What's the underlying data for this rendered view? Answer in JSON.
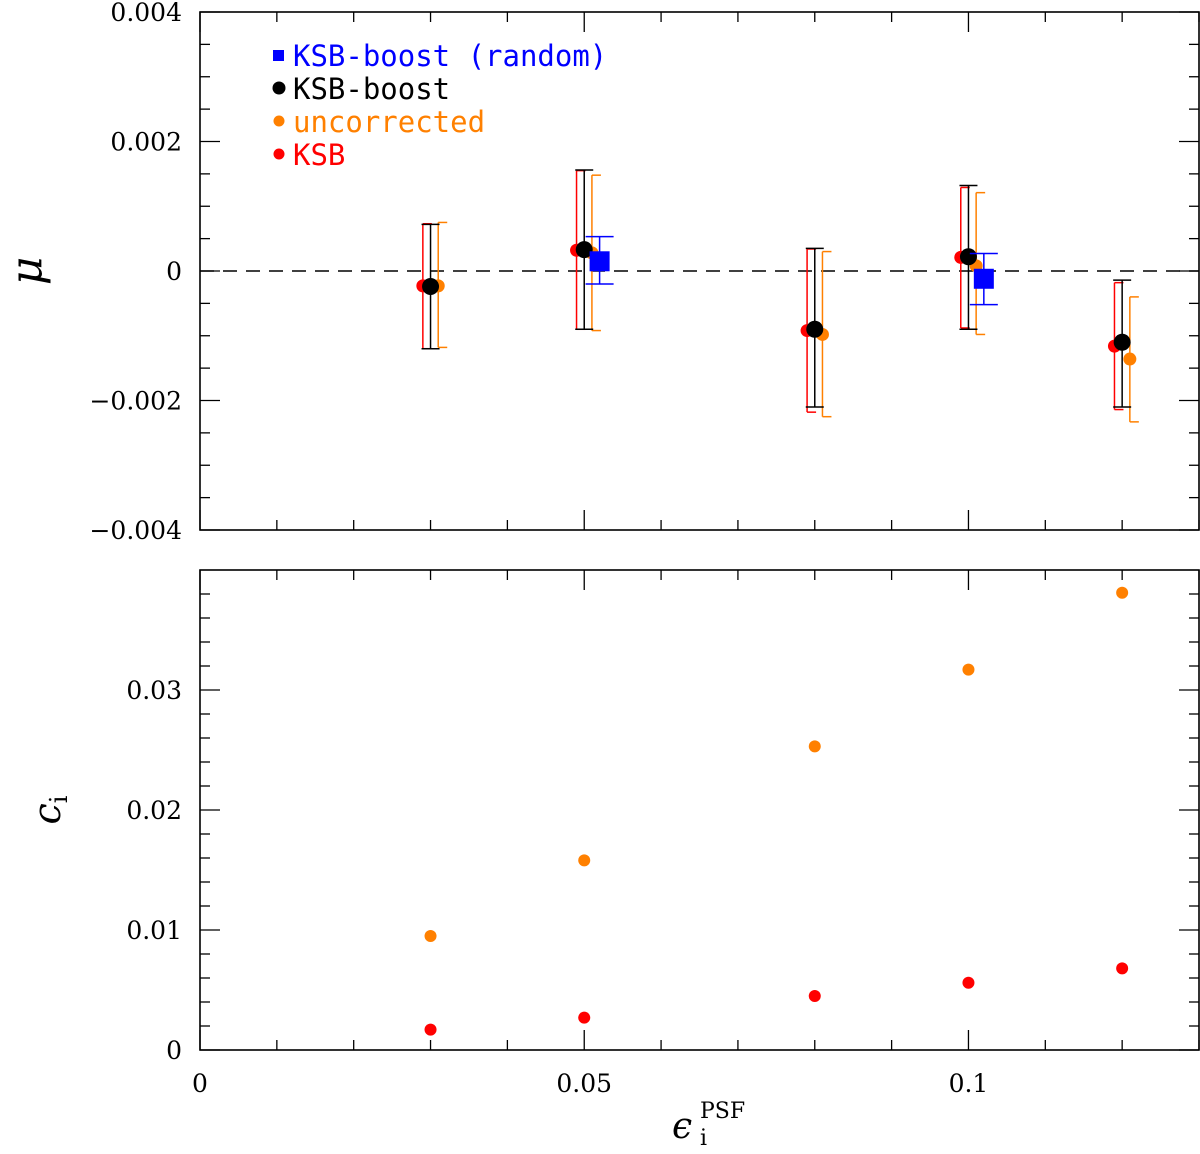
{
  "chart_data": [
    {
      "type": "scatter",
      "panel": "top",
      "ylabel": "μ",
      "ylim": [
        -0.004,
        0.004
      ],
      "xlim": [
        0,
        0.13
      ],
      "yticks": [
        {
          "value": -0.004,
          "label": "−0.004"
        },
        {
          "value": -0.002,
          "label": "−0.002"
        },
        {
          "value": 0,
          "label": "0"
        },
        {
          "value": 0.002,
          "label": "0.002"
        },
        {
          "value": 0.004,
          "label": "0.004"
        }
      ],
      "reference_line": {
        "y": 0,
        "style": "dashed"
      },
      "legend_position": "top-left",
      "series": [
        {
          "name": "KSB-boost (random)",
          "key": "random",
          "color": "#0000ff",
          "marker": "square",
          "x": [
            0.052,
            0.102
          ],
          "y": [
            0.00015,
            -0.00012
          ],
          "yerr_low": [
            -0.0002,
            -0.00052
          ],
          "yerr_high": [
            0.00053,
            0.00027
          ]
        },
        {
          "name": "KSB-boost",
          "key": "boost",
          "color": "#000000",
          "marker": "circle",
          "x": [
            0.03,
            0.05,
            0.08,
            0.1,
            0.12
          ],
          "y": [
            -0.00024,
            0.00033,
            -0.0009,
            0.00022,
            -0.0011
          ],
          "yerr_low": [
            -0.0012,
            -0.0009,
            -0.0021,
            -0.0009,
            -0.0021
          ],
          "yerr_high": [
            0.00072,
            0.00156,
            0.00035,
            0.00132,
            -0.00014
          ]
        },
        {
          "name": "uncorrected",
          "key": "uncorrected",
          "color": "#ff8000",
          "marker": "circle",
          "x": [
            0.031,
            0.051,
            0.081,
            0.101,
            0.121
          ],
          "y": [
            -0.00023,
            0.00028,
            -0.00098,
            8e-05,
            -0.00136
          ],
          "yerr_low": [
            -0.00118,
            -0.00092,
            -0.00225,
            -0.00098,
            -0.00233
          ],
          "yerr_high": [
            0.00075,
            0.00148,
            0.0003,
            0.00121,
            -0.0004
          ]
        },
        {
          "name": "KSB",
          "key": "ksb",
          "color": "#ff0000",
          "marker": "circle",
          "x": [
            0.029,
            0.049,
            0.079,
            0.099,
            0.119
          ],
          "y": [
            -0.00023,
            0.00032,
            -0.00092,
            0.00021,
            -0.00116
          ],
          "yerr_low": [
            -0.0012,
            -0.0009,
            -0.00218,
            -0.00088,
            -0.00214
          ],
          "yerr_high": [
            0.00073,
            0.00155,
            0.00034,
            0.00129,
            -0.00018
          ]
        }
      ]
    },
    {
      "type": "scatter",
      "panel": "bottom",
      "xlabel": "ϵ",
      "xlabel_sub": "i",
      "xlabel_sup": "PSF",
      "ylabel": "c",
      "ylabel_sub": "i",
      "xlim": [
        0,
        0.13
      ],
      "ylim": [
        0,
        0.04
      ],
      "xticks": [
        {
          "value": 0,
          "label": "0"
        },
        {
          "value": 0.05,
          "label": "0.05"
        },
        {
          "value": 0.1,
          "label": "0.1"
        }
      ],
      "yticks": [
        {
          "value": 0,
          "label": "0"
        },
        {
          "value": 0.01,
          "label": "0.01"
        },
        {
          "value": 0.02,
          "label": "0.02"
        },
        {
          "value": 0.03,
          "label": "0.03"
        }
      ],
      "series": [
        {
          "name": "uncorrected",
          "color": "#ff8000",
          "marker": "circle",
          "x": [
            0.03,
            0.05,
            0.08,
            0.1,
            0.12
          ],
          "y": [
            0.0095,
            0.0158,
            0.0253,
            0.0317,
            0.0381
          ]
        },
        {
          "name": "KSB",
          "color": "#ff0000",
          "marker": "circle",
          "x": [
            0.03,
            0.05,
            0.08,
            0.1,
            0.12
          ],
          "y": [
            0.0017,
            0.0027,
            0.0045,
            0.0056,
            0.0068
          ]
        }
      ]
    }
  ]
}
